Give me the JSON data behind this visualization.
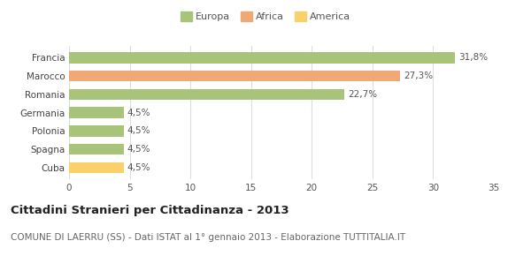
{
  "categories": [
    "Cuba",
    "Spagna",
    "Polonia",
    "Germania",
    "Romania",
    "Marocco",
    "Francia"
  ],
  "values": [
    4.5,
    4.5,
    4.5,
    4.5,
    22.7,
    27.3,
    31.8
  ],
  "bar_colors": [
    "#f9d06a",
    "#a8c47a",
    "#a8c47a",
    "#a8c47a",
    "#a8c47a",
    "#f0a875",
    "#a8c47a"
  ],
  "labels": [
    "4,5%",
    "4,5%",
    "4,5%",
    "4,5%",
    "22,7%",
    "27,3%",
    "31,8%"
  ],
  "legend": [
    {
      "label": "Europa",
      "color": "#a8c47a"
    },
    {
      "label": "Africa",
      "color": "#f0a875"
    },
    {
      "label": "America",
      "color": "#f9d06a"
    }
  ],
  "xlim": [
    0,
    35
  ],
  "xticks": [
    0,
    5,
    10,
    15,
    20,
    25,
    30,
    35
  ],
  "title": "Cittadini Stranieri per Cittadinanza - 2013",
  "subtitle": "COMUNE DI LAERRU (SS) - Dati ISTAT al 1° gennaio 2013 - Elaborazione TUTTITALIA.IT",
  "title_fontsize": 9.5,
  "subtitle_fontsize": 7.5,
  "label_fontsize": 7.5,
  "tick_fontsize": 7.5,
  "background_color": "#ffffff",
  "grid_color": "#dddddd"
}
